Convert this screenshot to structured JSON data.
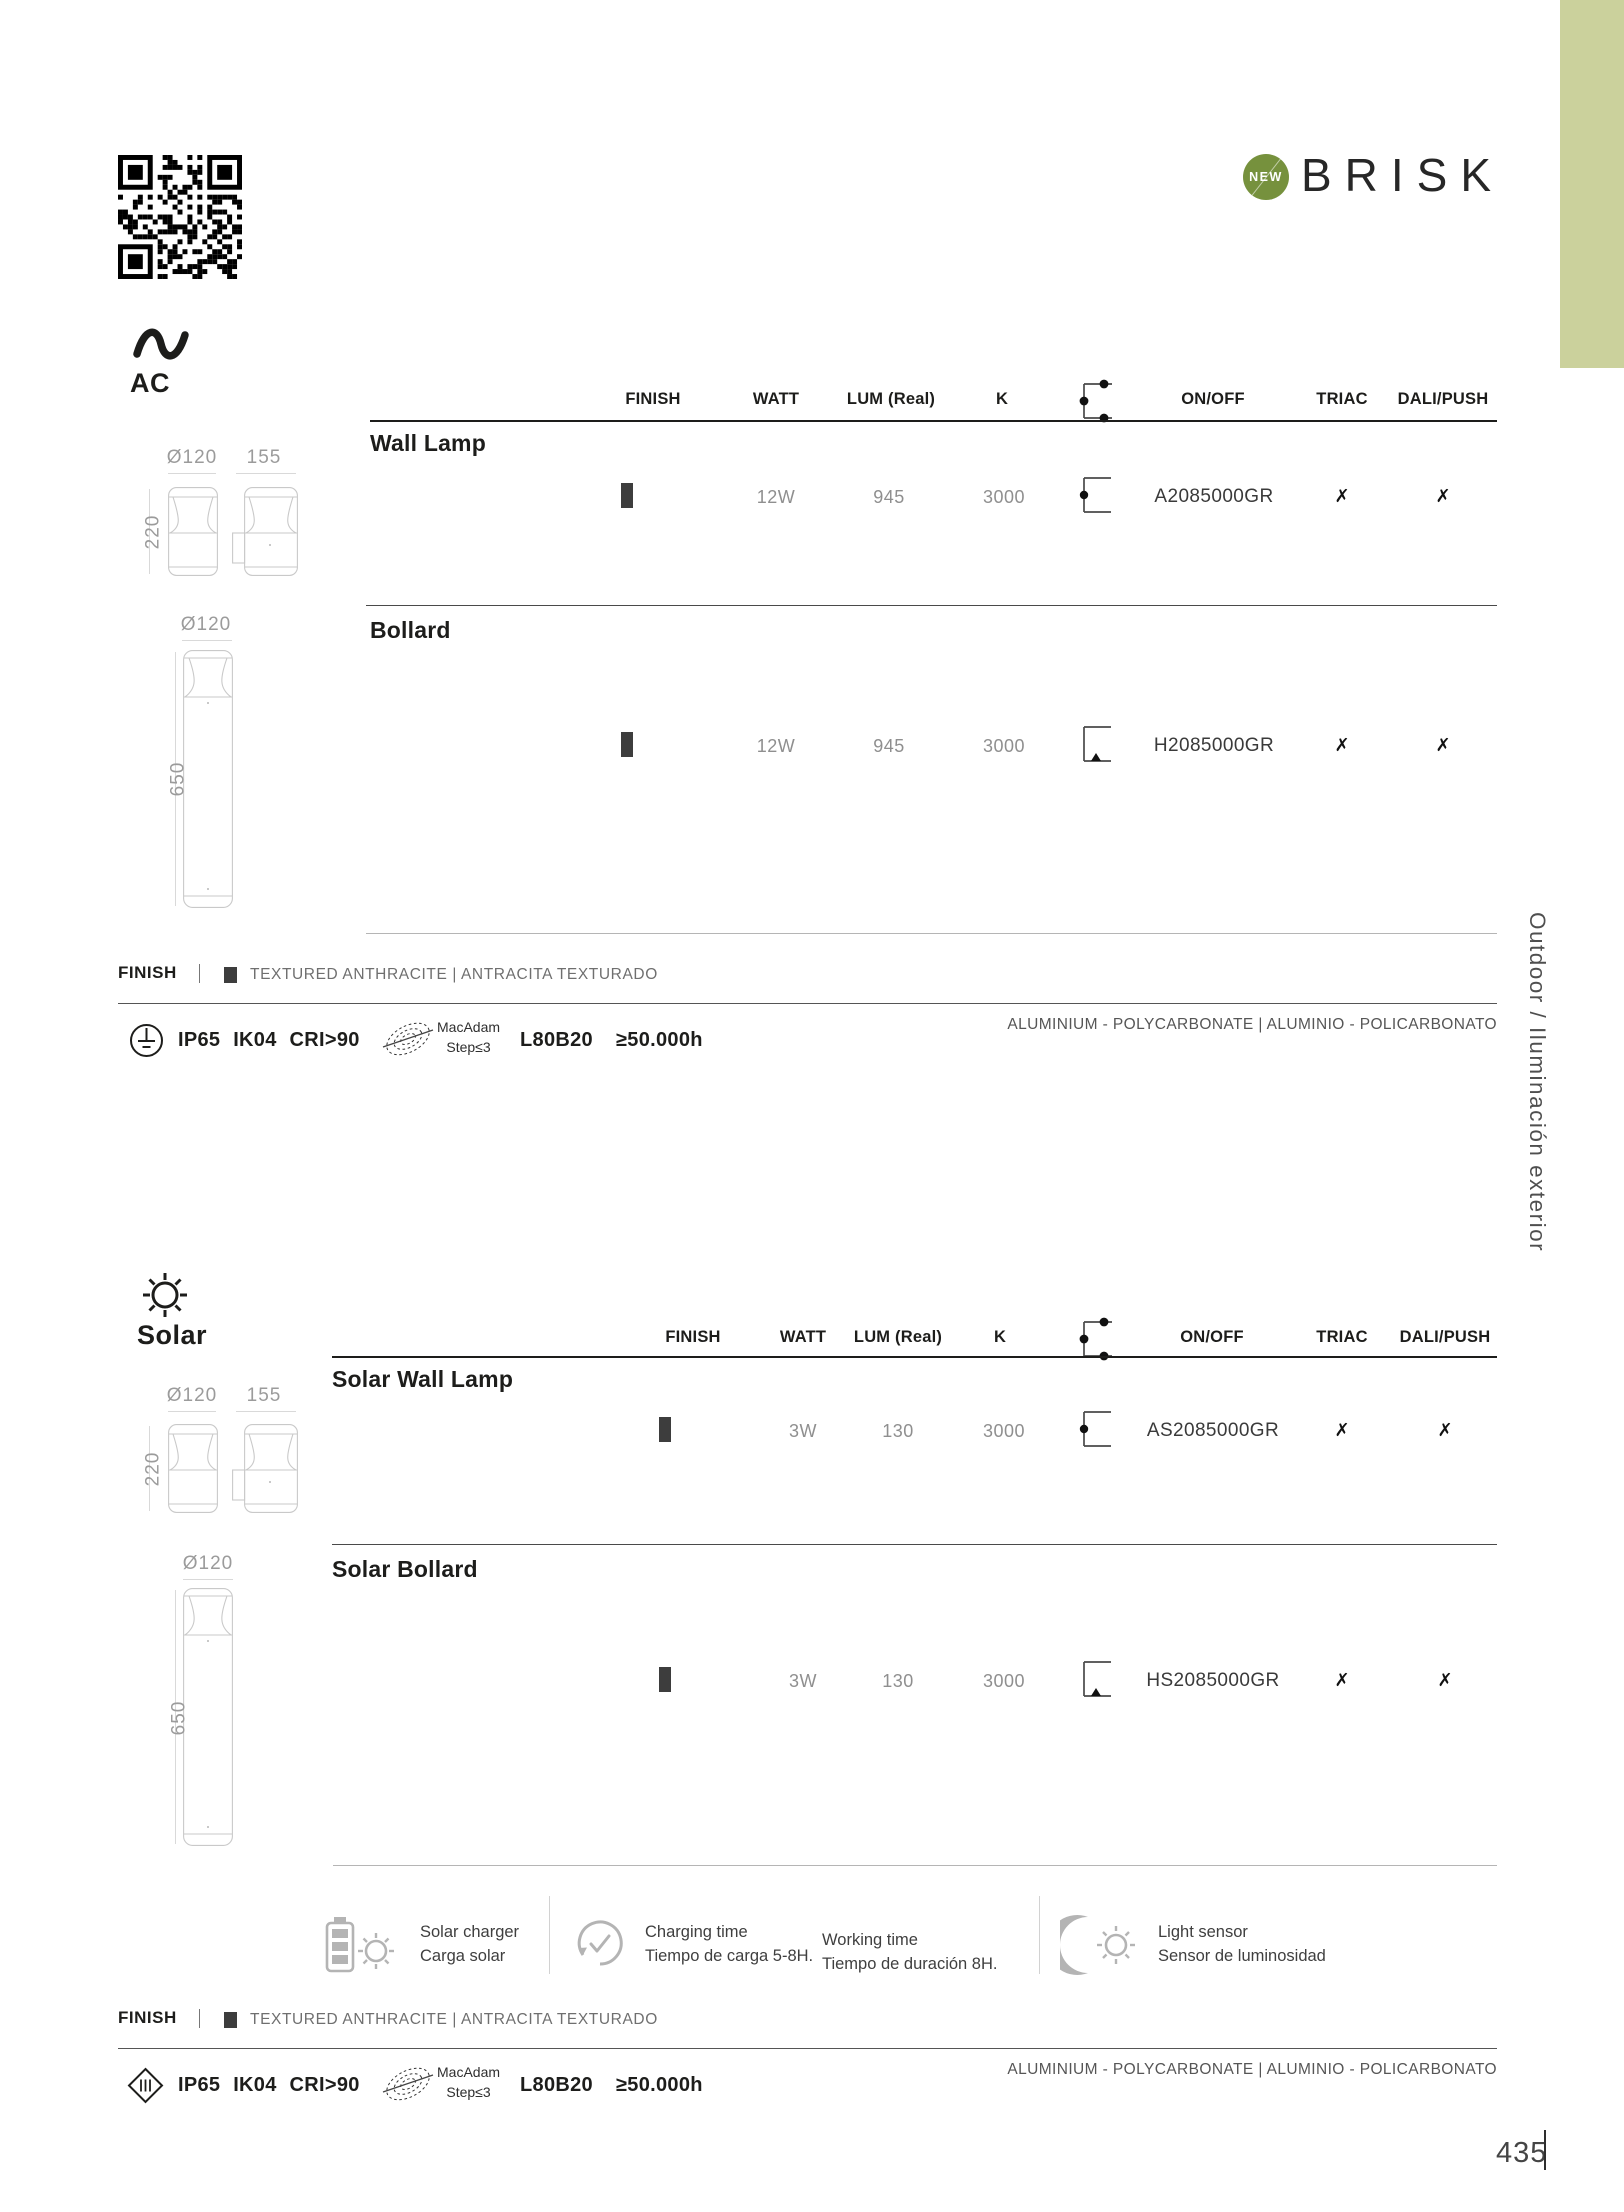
{
  "brand": {
    "badge": "NEW",
    "name": "BRISK"
  },
  "sidebar": {
    "vertical_text": "Outdoor / Iluminación exterior"
  },
  "page": {
    "number": "435"
  },
  "table": {
    "finish": "FINISH",
    "watt": "WATT",
    "lum": "LUM (Real)",
    "k": "K",
    "onoff": "ON/OFF",
    "triac": "TRIAC",
    "dali": "DALI/PUSH"
  },
  "ac": {
    "label": "AC",
    "wall": {
      "title": "Wall Lamp",
      "dia": "Ø120",
      "depth": "155",
      "height": "220",
      "watt": "12W",
      "lum": "945",
      "k": "3000",
      "code": "A2085000GR",
      "triac": "✗",
      "dali": "✗"
    },
    "bollard": {
      "title": "Bollard",
      "dia": "Ø120",
      "height": "650",
      "watt": "12W",
      "lum": "945",
      "k": "3000",
      "code": "H2085000GR",
      "triac": "✗",
      "dali": "✗"
    },
    "finish": {
      "label": "FINISH",
      "value": "TEXTURED ANTHRACITE | ANTRACITA TEXTURADO"
    },
    "specs": {
      "ratings": "IP65 IK04 CRI>90",
      "macadam_1": "MacAdam",
      "macadam_2": "Step≤3",
      "lumen": "L80B20",
      "hours": "≥50.000h",
      "materials": "ALUMINIUM - POLYCARBONATE | ALUMINIO - POLICARBONATO"
    }
  },
  "solar": {
    "label": "Solar",
    "wall": {
      "title": "Solar Wall Lamp",
      "dia": "Ø120",
      "depth": "155",
      "height": "220",
      "watt": "3W",
      "lum": "130",
      "k": "3000",
      "code": "AS2085000GR",
      "triac": "✗",
      "dali": "✗"
    },
    "bollard": {
      "title": "Solar Bollard",
      "dia": "Ø120",
      "height": "650",
      "watt": "3W",
      "lum": "130",
      "k": "3000",
      "code": "HS2085000GR",
      "triac": "✗",
      "dali": "✗"
    },
    "features": {
      "charger_1": "Solar charger",
      "charger_2": "Carga solar",
      "charging_1": "Charging time",
      "charging_2": "Tiempo de carga 5-8H.",
      "working_1": "Working time",
      "working_2": "Tiempo de duración 8H.",
      "sensor_1": "Light sensor",
      "sensor_2": "Sensor de luminosidad"
    },
    "finish": {
      "label": "FINISH",
      "value": "TEXTURED ANTHRACITE | ANTRACITA TEXTURADO"
    },
    "specs": {
      "ratings": "IP65 IK04 CRI>90",
      "macadam_1": "MacAdam",
      "macadam_2": "Step≤3",
      "lumen": "L80B20",
      "hours": "≥50.000h",
      "materials": "ALUMINIUM - POLYCARBONATE | ALUMINIO - POLICARBONATO"
    }
  },
  "colors": {
    "accent_green": "#76913d",
    "sidebar_bar": "#cbd19c",
    "anthracite": "#3d3d3d"
  }
}
